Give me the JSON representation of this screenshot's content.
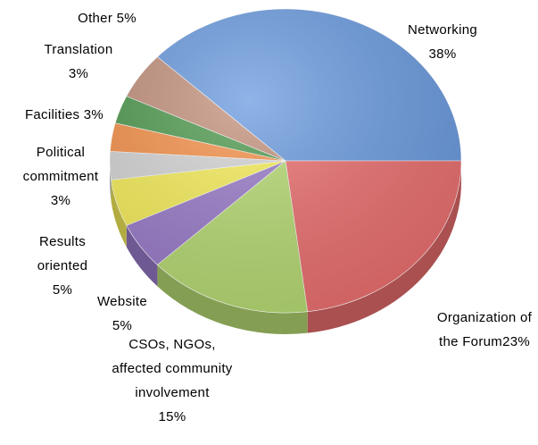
{
  "chart_data": {
    "type": "pie",
    "categories": [
      "Networking",
      "Organization of the Forum",
      "CSOs, NGOs, affected community involvement",
      "Website",
      "Results oriented",
      "Political commitment",
      "Facilities",
      "Translation",
      "Other"
    ],
    "values": [
      38,
      23,
      15,
      5,
      5,
      3,
      3,
      3,
      5
    ],
    "value_labels": [
      "38%",
      "23%",
      "15%",
      "5%",
      "5%",
      "3%",
      "3%",
      "3%",
      "5%"
    ],
    "colors": [
      "#6a9be0",
      "#ec6f6f",
      "#b7db73",
      "#9a7ccb",
      "#f7ef5a",
      "#d6d6d6",
      "#f7924a",
      "#4f9a4f",
      "#c4917c"
    ]
  }
}
